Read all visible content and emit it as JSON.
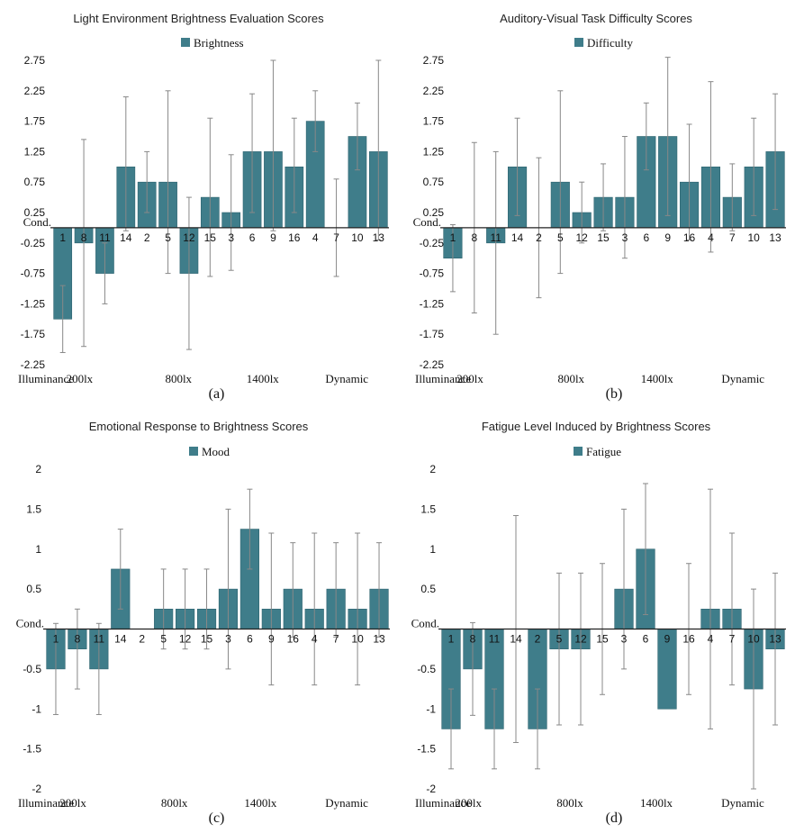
{
  "colors": {
    "bar": "#3f7d8a",
    "barEdge": "#2f6470",
    "axis": "#222222",
    "err": "#888888"
  },
  "chart_data": [
    {
      "id": "a",
      "type": "bar",
      "panel_label": "(a)",
      "title": "Light Environment Brightness Evaluation Scores",
      "legend": "Brightness",
      "cond_label": "Cond.",
      "ylim": [
        -2.25,
        2.75
      ],
      "yticks": [
        "2.75",
        "2.25",
        "1.75",
        "1.25",
        "0.75",
        "0.25",
        "-0.25",
        "-0.75",
        "-1.25",
        "-1.75",
        "-2.25"
      ],
      "categories": [
        "1",
        "8",
        "11",
        "14",
        "2",
        "5",
        "12",
        "15",
        "3",
        "6",
        "9",
        "16",
        "4",
        "7",
        "10",
        "13"
      ],
      "values": [
        -1.5,
        -0.25,
        -0.75,
        1.0,
        0.75,
        0.75,
        -0.75,
        0.5,
        0.25,
        1.25,
        1.25,
        1.0,
        1.75,
        0,
        1.5,
        1.25
      ],
      "err_low": [
        -2.05,
        -1.95,
        -1.25,
        -0.05,
        0.25,
        -0.75,
        -2.0,
        -0.8,
        -0.7,
        0.25,
        -0.05,
        0.25,
        1.25,
        -0.8,
        0.95,
        -0.2
      ],
      "err_high": [
        -0.95,
        1.45,
        -0.25,
        2.15,
        1.25,
        2.25,
        0.5,
        1.8,
        1.2,
        2.2,
        2.75,
        1.8,
        2.25,
        0.8,
        2.05,
        2.75
      ],
      "groups": [
        {
          "label": "Illuminance",
          "start": 0,
          "end": 0
        },
        {
          "label": "200lx",
          "start": 0,
          "end": 3
        },
        {
          "label": "800lx",
          "start": 4,
          "end": 7
        },
        {
          "label": "1400lx",
          "start": 8,
          "end": 11
        },
        {
          "label": "Dynamic",
          "start": 12,
          "end": 15
        }
      ]
    },
    {
      "id": "b",
      "type": "bar",
      "panel_label": "(b)",
      "title": "Auditory-Visual Task Difficulty Scores",
      "legend": "Difficulty",
      "cond_label": "Cond.",
      "ylim": [
        -2.25,
        2.75
      ],
      "yticks": [
        "2.75",
        "2.25",
        "1.75",
        "1.25",
        "0.75",
        "0.25",
        "-0.25",
        "-0.75",
        "-1.25",
        "-1.75",
        "-2.25"
      ],
      "categories": [
        "1",
        "8",
        "11",
        "14",
        "2",
        "5",
        "12",
        "15",
        "3",
        "6",
        "9",
        "16",
        "4",
        "7",
        "10",
        "13"
      ],
      "values": [
        -0.5,
        0,
        -0.25,
        1.0,
        0,
        0.75,
        0.25,
        0.5,
        0.5,
        1.5,
        1.5,
        0.75,
        1.0,
        0.5,
        1.0,
        1.25
      ],
      "err_low": [
        -1.05,
        -1.4,
        -1.75,
        0.2,
        -1.15,
        -0.75,
        -0.25,
        -0.05,
        -0.5,
        0.95,
        0.2,
        -0.2,
        -0.4,
        -0.05,
        0.2,
        0.3
      ],
      "err_high": [
        0.05,
        1.4,
        1.25,
        1.8,
        1.15,
        2.25,
        0.75,
        1.05,
        1.5,
        2.05,
        2.8,
        1.7,
        2.4,
        1.05,
        1.8,
        2.2
      ],
      "groups": [
        {
          "label": "Illuminance",
          "start": 0,
          "end": 0
        },
        {
          "label": "200lx",
          "start": 0,
          "end": 3
        },
        {
          "label": "800lx",
          "start": 4,
          "end": 7
        },
        {
          "label": "1400lx",
          "start": 8,
          "end": 11
        },
        {
          "label": "Dynamic",
          "start": 12,
          "end": 15
        }
      ]
    },
    {
      "id": "c",
      "type": "bar",
      "panel_label": "(c)",
      "title": "Emotional Response to Brightness Scores",
      "legend": "Mood",
      "cond_label": "Cond.",
      "ylim": [
        -2,
        2
      ],
      "yticks": [
        "2",
        "1.5",
        "1",
        "0.5",
        "-0.5",
        "-1",
        "-1.5",
        "-2"
      ],
      "categories": [
        "1",
        "8",
        "11",
        "14",
        "2",
        "5",
        "12",
        "15",
        "3",
        "6",
        "9",
        "16",
        "4",
        "7",
        "10",
        "13"
      ],
      "values": [
        -0.5,
        -0.25,
        -0.5,
        0.75,
        0,
        0.25,
        0.25,
        0.25,
        0.5,
        1.25,
        0.25,
        0.5,
        0.25,
        0.5,
        0.25,
        0.5
      ],
      "err_low": [
        -1.07,
        -0.75,
        -1.07,
        0.25,
        0,
        -0.25,
        -0.25,
        -0.25,
        -0.5,
        0.75,
        -0.7,
        -0.1,
        -0.7,
        -0.1,
        -0.7,
        -0.1
      ],
      "err_high": [
        0.07,
        0.25,
        0.07,
        1.25,
        0,
        0.75,
        0.75,
        0.75,
        1.5,
        1.75,
        1.2,
        1.08,
        1.2,
        1.08,
        1.2,
        1.08
      ],
      "groups": [
        {
          "label": "Illuminance",
          "start": 0,
          "end": 0
        },
        {
          "label": "200lx",
          "start": 0,
          "end": 3
        },
        {
          "label": "800lx",
          "start": 4,
          "end": 7
        },
        {
          "label": "1400lx",
          "start": 8,
          "end": 11
        },
        {
          "label": "Dynamic",
          "start": 12,
          "end": 15
        }
      ]
    },
    {
      "id": "d",
      "type": "bar",
      "panel_label": "(d)",
      "title": "Fatigue Level Induced by Brightness Scores",
      "legend": "Fatigue",
      "cond_label": "Cond.",
      "ylim": [
        -2,
        2
      ],
      "yticks": [
        "2",
        "1.5",
        "1",
        "0.5",
        "-0.5",
        "-1",
        "-1.5",
        "-2"
      ],
      "categories": [
        "1",
        "8",
        "11",
        "14",
        "2",
        "5",
        "12",
        "15",
        "3",
        "6",
        "9",
        "16",
        "4",
        "7",
        "10",
        "13"
      ],
      "values": [
        -1.25,
        -0.5,
        -1.25,
        0,
        -1.25,
        -0.25,
        -0.25,
        0,
        0.5,
        1.0,
        -1.0,
        0,
        0.25,
        0.25,
        -0.75,
        -0.25
      ],
      "err_low": [
        -1.75,
        -1.08,
        -1.75,
        -1.42,
        -1.75,
        -1.2,
        -1.2,
        -0.82,
        -0.5,
        0.18,
        -1.0,
        -0.82,
        -1.25,
        -0.7,
        -2.0,
        -1.2
      ],
      "err_high": [
        -0.75,
        0.08,
        -0.75,
        1.42,
        -0.75,
        0.7,
        0.7,
        0.82,
        1.5,
        1.82,
        -1.0,
        0.82,
        1.75,
        1.2,
        0.5,
        0.7
      ],
      "groups": [
        {
          "label": "Illuminance",
          "start": 0,
          "end": 0
        },
        {
          "label": "200lx",
          "start": 0,
          "end": 3
        },
        {
          "label": "800lx",
          "start": 4,
          "end": 7
        },
        {
          "label": "1400lx",
          "start": 8,
          "end": 11
        },
        {
          "label": "Dynamic",
          "start": 12,
          "end": 15
        }
      ]
    }
  ]
}
